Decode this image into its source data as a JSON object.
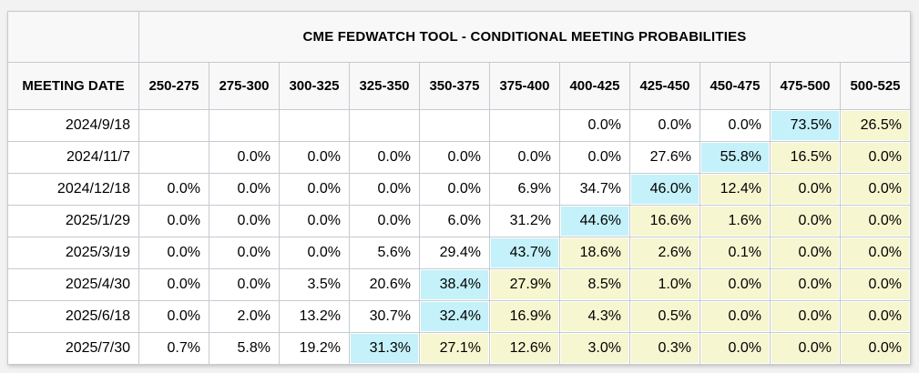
{
  "page": {
    "background_color": "#f2f2f3"
  },
  "chart_data": {
    "type": "table",
    "title": "CME FEDWATCH TOOL - CONDITIONAL MEETING PROBABILITIES",
    "row_header": "MEETING DATE",
    "columns": [
      "250-275",
      "275-300",
      "300-325",
      "325-350",
      "350-375",
      "375-400",
      "400-425",
      "425-450",
      "450-475",
      "475-500",
      "500-525"
    ],
    "highlight_colors": {
      "blue": "#c4f1fa",
      "yellow": "#f6f6d0"
    },
    "rows": [
      {
        "date": "2024/9/18",
        "cells": [
          {
            "v": "",
            "hl": "none"
          },
          {
            "v": "",
            "hl": "none"
          },
          {
            "v": "",
            "hl": "none"
          },
          {
            "v": "",
            "hl": "none"
          },
          {
            "v": "",
            "hl": "none"
          },
          {
            "v": "",
            "hl": "none"
          },
          {
            "v": "0.0%",
            "hl": "none"
          },
          {
            "v": "0.0%",
            "hl": "none"
          },
          {
            "v": "0.0%",
            "hl": "none"
          },
          {
            "v": "73.5%",
            "hl": "blue"
          },
          {
            "v": "26.5%",
            "hl": "yellow"
          }
        ]
      },
      {
        "date": "2024/11/7",
        "cells": [
          {
            "v": "",
            "hl": "none"
          },
          {
            "v": "0.0%",
            "hl": "none"
          },
          {
            "v": "0.0%",
            "hl": "none"
          },
          {
            "v": "0.0%",
            "hl": "none"
          },
          {
            "v": "0.0%",
            "hl": "none"
          },
          {
            "v": "0.0%",
            "hl": "none"
          },
          {
            "v": "0.0%",
            "hl": "none"
          },
          {
            "v": "27.6%",
            "hl": "none"
          },
          {
            "v": "55.8%",
            "hl": "blue"
          },
          {
            "v": "16.5%",
            "hl": "yellow"
          },
          {
            "v": "0.0%",
            "hl": "yellow"
          }
        ]
      },
      {
        "date": "2024/12/18",
        "cells": [
          {
            "v": "0.0%",
            "hl": "none"
          },
          {
            "v": "0.0%",
            "hl": "none"
          },
          {
            "v": "0.0%",
            "hl": "none"
          },
          {
            "v": "0.0%",
            "hl": "none"
          },
          {
            "v": "0.0%",
            "hl": "none"
          },
          {
            "v": "6.9%",
            "hl": "none"
          },
          {
            "v": "34.7%",
            "hl": "none"
          },
          {
            "v": "46.0%",
            "hl": "blue"
          },
          {
            "v": "12.4%",
            "hl": "yellow"
          },
          {
            "v": "0.0%",
            "hl": "yellow"
          },
          {
            "v": "0.0%",
            "hl": "yellow"
          }
        ]
      },
      {
        "date": "2025/1/29",
        "cells": [
          {
            "v": "0.0%",
            "hl": "none"
          },
          {
            "v": "0.0%",
            "hl": "none"
          },
          {
            "v": "0.0%",
            "hl": "none"
          },
          {
            "v": "0.0%",
            "hl": "none"
          },
          {
            "v": "6.0%",
            "hl": "none"
          },
          {
            "v": "31.2%",
            "hl": "none"
          },
          {
            "v": "44.6%",
            "hl": "blue"
          },
          {
            "v": "16.6%",
            "hl": "yellow"
          },
          {
            "v": "1.6%",
            "hl": "yellow"
          },
          {
            "v": "0.0%",
            "hl": "yellow"
          },
          {
            "v": "0.0%",
            "hl": "yellow"
          }
        ]
      },
      {
        "date": "2025/3/19",
        "cells": [
          {
            "v": "0.0%",
            "hl": "none"
          },
          {
            "v": "0.0%",
            "hl": "none"
          },
          {
            "v": "0.0%",
            "hl": "none"
          },
          {
            "v": "5.6%",
            "hl": "none"
          },
          {
            "v": "29.4%",
            "hl": "none"
          },
          {
            "v": "43.7%",
            "hl": "blue"
          },
          {
            "v": "18.6%",
            "hl": "yellow"
          },
          {
            "v": "2.6%",
            "hl": "yellow"
          },
          {
            "v": "0.1%",
            "hl": "yellow"
          },
          {
            "v": "0.0%",
            "hl": "yellow"
          },
          {
            "v": "0.0%",
            "hl": "yellow"
          }
        ]
      },
      {
        "date": "2025/4/30",
        "cells": [
          {
            "v": "0.0%",
            "hl": "none"
          },
          {
            "v": "0.0%",
            "hl": "none"
          },
          {
            "v": "3.5%",
            "hl": "none"
          },
          {
            "v": "20.6%",
            "hl": "none"
          },
          {
            "v": "38.4%",
            "hl": "blue"
          },
          {
            "v": "27.9%",
            "hl": "yellow"
          },
          {
            "v": "8.5%",
            "hl": "yellow"
          },
          {
            "v": "1.0%",
            "hl": "yellow"
          },
          {
            "v": "0.0%",
            "hl": "yellow"
          },
          {
            "v": "0.0%",
            "hl": "yellow"
          },
          {
            "v": "0.0%",
            "hl": "yellow"
          }
        ]
      },
      {
        "date": "2025/6/18",
        "cells": [
          {
            "v": "0.0%",
            "hl": "none"
          },
          {
            "v": "2.0%",
            "hl": "none"
          },
          {
            "v": "13.2%",
            "hl": "none"
          },
          {
            "v": "30.7%",
            "hl": "none"
          },
          {
            "v": "32.4%",
            "hl": "blue"
          },
          {
            "v": "16.9%",
            "hl": "yellow"
          },
          {
            "v": "4.3%",
            "hl": "yellow"
          },
          {
            "v": "0.5%",
            "hl": "yellow"
          },
          {
            "v": "0.0%",
            "hl": "yellow"
          },
          {
            "v": "0.0%",
            "hl": "yellow"
          },
          {
            "v": "0.0%",
            "hl": "yellow"
          }
        ]
      },
      {
        "date": "2025/7/30",
        "cells": [
          {
            "v": "0.7%",
            "hl": "none"
          },
          {
            "v": "5.8%",
            "hl": "none"
          },
          {
            "v": "19.2%",
            "hl": "none"
          },
          {
            "v": "31.3%",
            "hl": "blue"
          },
          {
            "v": "27.1%",
            "hl": "yellow"
          },
          {
            "v": "12.6%",
            "hl": "yellow"
          },
          {
            "v": "3.0%",
            "hl": "yellow"
          },
          {
            "v": "0.3%",
            "hl": "yellow"
          },
          {
            "v": "0.0%",
            "hl": "yellow"
          },
          {
            "v": "0.0%",
            "hl": "yellow"
          },
          {
            "v": "0.0%",
            "hl": "yellow"
          }
        ]
      }
    ]
  }
}
